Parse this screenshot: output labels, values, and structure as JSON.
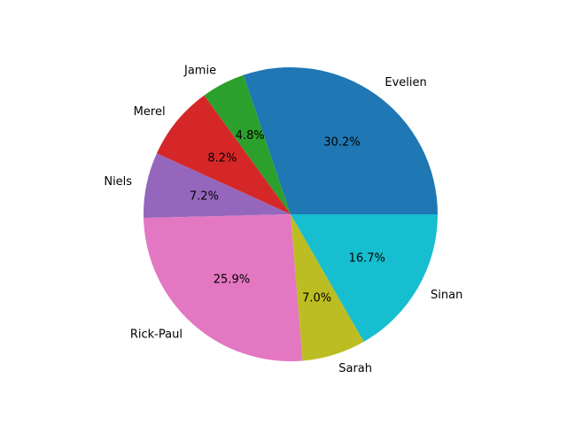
{
  "chart_data": {
    "type": "pie",
    "title": "",
    "start_angle_deg": 0,
    "direction": "counterclockwise",
    "slices": [
      {
        "label": "Evelien",
        "pct_label": "30.2%",
        "value": 30.2,
        "color": "#1f77b4"
      },
      {
        "label": "Jamie",
        "pct_label": "4.8%",
        "value": 4.8,
        "color": "#2ca02c"
      },
      {
        "label": "Merel",
        "pct_label": "8.2%",
        "value": 8.2,
        "color": "#d62728"
      },
      {
        "label": "Niels",
        "pct_label": "7.2%",
        "value": 7.2,
        "color": "#9467bd"
      },
      {
        "label": "Rick-Paul",
        "pct_label": "25.9%",
        "value": 25.9,
        "color": "#e377c2"
      },
      {
        "label": "Sarah",
        "pct_label": "7.0%",
        "value": 7.0,
        "color": "#bcbd22"
      },
      {
        "label": "Sinan",
        "pct_label": "16.7%",
        "value": 16.7,
        "color": "#17becf"
      }
    ]
  }
}
